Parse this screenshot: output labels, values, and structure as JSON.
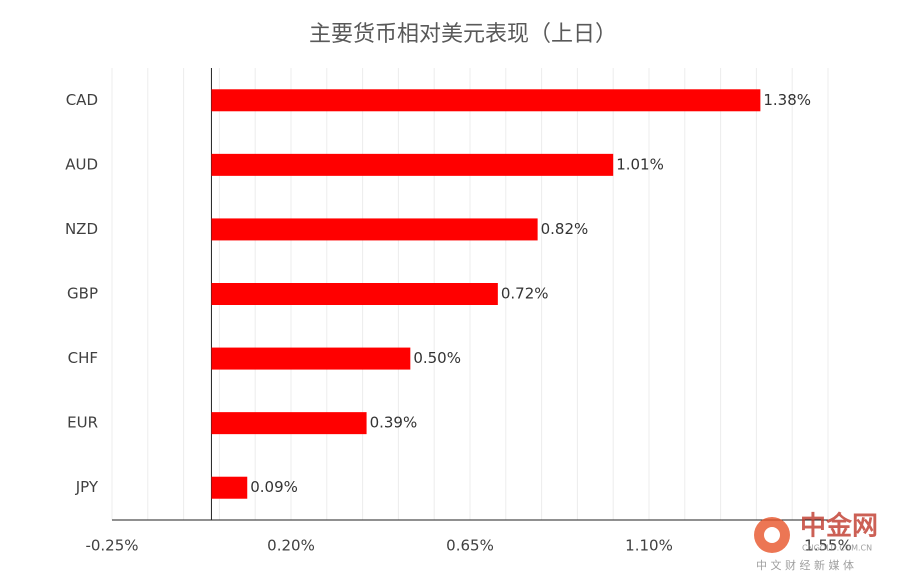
{
  "chart_data": {
    "type": "bar",
    "orientation": "horizontal",
    "title": "主要货币相对美元表现（上日）",
    "categories": [
      "CAD",
      "AUD",
      "NZD",
      "GBP",
      "CHF",
      "EUR",
      "JPY"
    ],
    "values": [
      1.38,
      1.01,
      0.82,
      0.72,
      0.5,
      0.39,
      0.09
    ],
    "value_labels": [
      "1.38%",
      "1.01%",
      "0.82%",
      "0.72%",
      "0.50%",
      "0.39%",
      "0.09%"
    ],
    "color": "#ff0000",
    "xlim": [
      -0.25,
      1.55
    ],
    "xticks": [
      {
        "value": -0.25,
        "label": "-0.25%"
      },
      {
        "value": 0.2,
        "label": "0.20%"
      },
      {
        "value": 0.65,
        "label": "0.65%"
      },
      {
        "value": 1.1,
        "label": "1.10%"
      },
      {
        "value": 1.55,
        "label": "1.55%"
      }
    ],
    "minor_xticks": [
      -0.16,
      -0.07,
      0.02,
      0.11,
      0.29,
      0.38,
      0.47,
      0.56,
      0.74,
      0.83,
      0.92,
      1.01,
      1.19,
      1.28,
      1.37,
      1.46
    ],
    "grid": true
  },
  "watermark": {
    "name": "中金网",
    "url": "CNGOLD.COM.CN",
    "slogan": "中 文 财 经 新 媒 体"
  }
}
